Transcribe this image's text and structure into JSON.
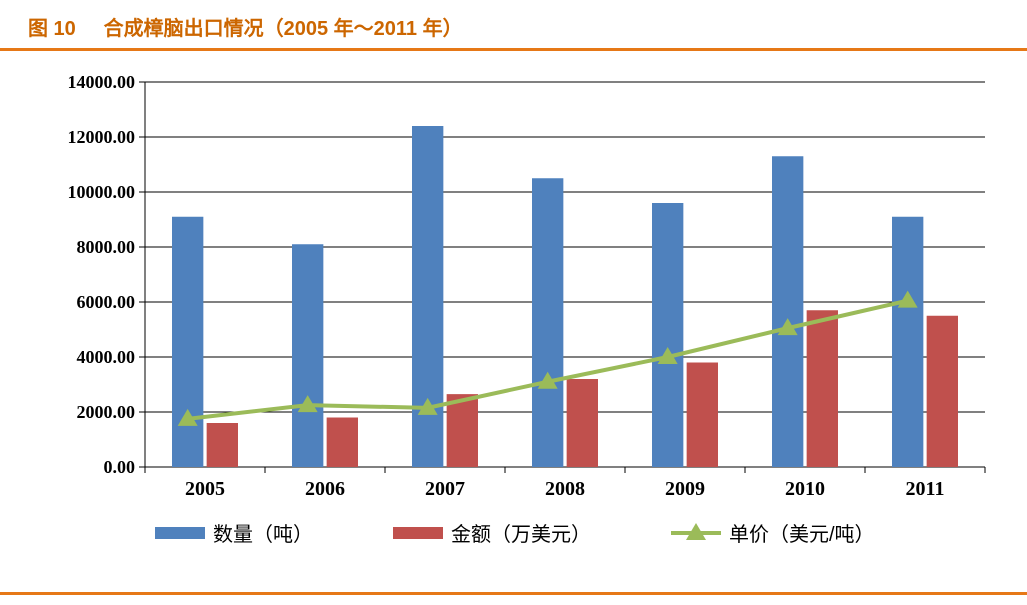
{
  "title": {
    "fig_label": "图 10",
    "fig_title": "合成樟脑出口情况（2005 年～2011 年）",
    "color": "#cc6600",
    "fontsize": 20
  },
  "rules": {
    "color": "#e67817",
    "thickness": 3
  },
  "chart": {
    "type": "bar+line",
    "categories": [
      "2005",
      "2006",
      "2007",
      "2008",
      "2009",
      "2010",
      "2011"
    ],
    "series": {
      "qty": {
        "label": "数量（吨）",
        "type": "bar",
        "color": "#4f81bd",
        "values": [
          9100,
          8100,
          12400,
          10500,
          9600,
          11300,
          9100
        ]
      },
      "amount": {
        "label": "金额（万美元）",
        "type": "bar",
        "color": "#c0504d",
        "values": [
          1600,
          1800,
          2650,
          3200,
          3800,
          5700,
          5500
        ]
      },
      "price": {
        "label": "单价（美元/吨）",
        "type": "line",
        "line_color": "#9bbb59",
        "marker": "triangle",
        "marker_color": "#9bbb59",
        "line_width": 4,
        "marker_size": 10,
        "values": [
          1750,
          2250,
          2150,
          3100,
          4000,
          5050,
          6050
        ]
      }
    },
    "y_axis": {
      "min": 0,
      "max": 14000,
      "step": 2000,
      "tick_format": "0.00",
      "ticks": [
        "0.00",
        "2000.00",
        "4000.00",
        "6000.00",
        "8000.00",
        "10000.00",
        "12000.00",
        "14000.00"
      ]
    },
    "plot": {
      "background": "#ffffff",
      "border_color": "#000000",
      "grid_color": "#000000",
      "tick_mark_color": "#000000",
      "bar_gap_inner": 0.05,
      "bar_group_width": 0.55,
      "label_fontsize": 18,
      "category_fontsize": 20
    },
    "legend": {
      "swatch_bar_w": 50,
      "swatch_bar_h": 12,
      "line_swatch_w": 50,
      "fontsize": 20
    }
  }
}
